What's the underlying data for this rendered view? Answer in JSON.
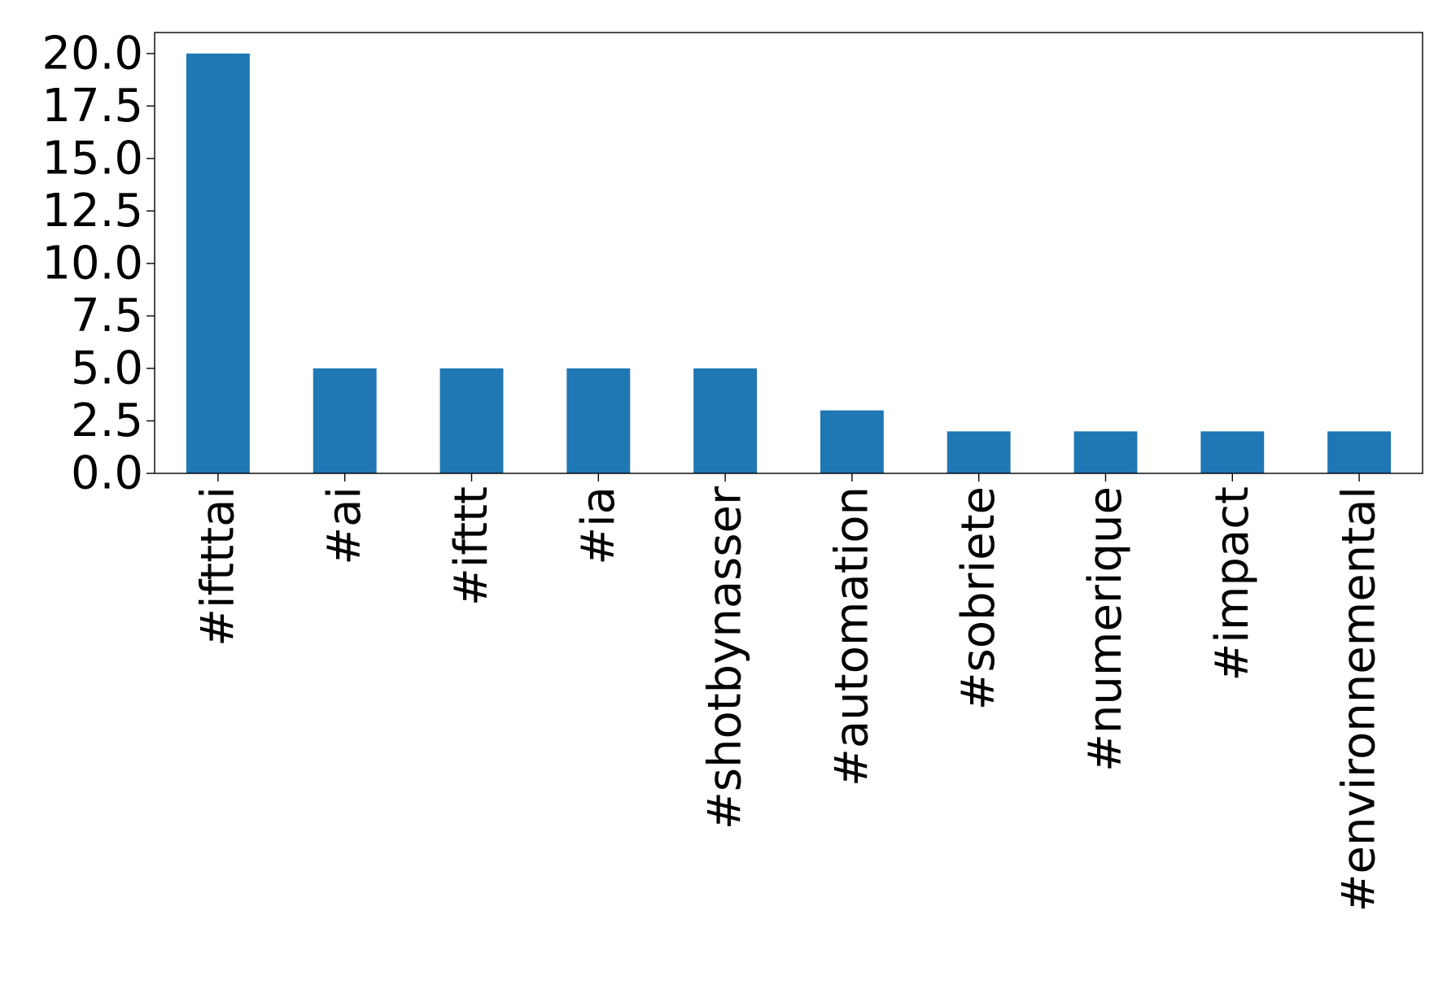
{
  "chart_data": {
    "type": "bar",
    "title": "",
    "xlabel": "",
    "ylabel": "",
    "categories": [
      "#iftttai",
      "#ai",
      "#ifttt",
      "#ia",
      "#shotbynasser",
      "#automation",
      "#sobriete",
      "#numerique",
      "#impact",
      "#environnemental"
    ],
    "values": [
      20,
      5,
      5,
      5,
      5,
      3,
      2,
      2,
      2,
      2
    ],
    "ylim": [
      0,
      21
    ],
    "yticks": [
      "0.0",
      "2.5",
      "5.0",
      "7.5",
      "10.0",
      "12.5",
      "15.0",
      "17.5",
      "20.0"
    ],
    "ytick_values": [
      0,
      2.5,
      5,
      7.5,
      10,
      12.5,
      15,
      17.5,
      20
    ],
    "grid": false,
    "legend": "none",
    "bar_color": "#1f77b4"
  }
}
